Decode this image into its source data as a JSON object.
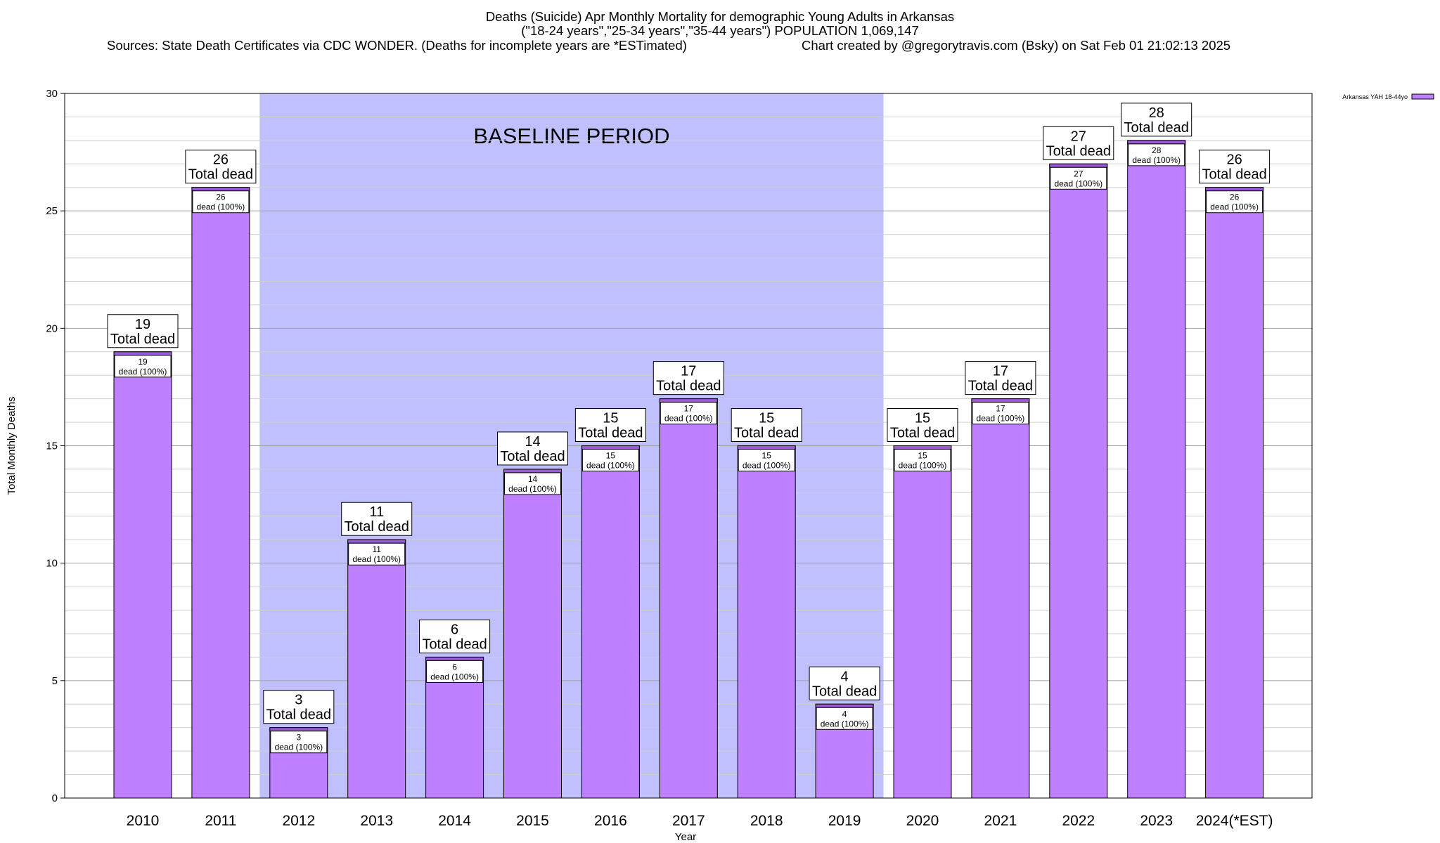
{
  "header": {
    "title_line1": "Deaths (Suicide) Apr Monthly Mortality for demographic Young Adults in Arkansas",
    "title_line2": "(\"18-24 years\",\"25-34 years\",\"35-44 years\") POPULATION 1,069,147",
    "sources": "Sources: State Death Certificates via CDC WONDER. (Deaths for incomplete years are *ESTimated)",
    "credit": "Chart created by @gregorytravis.com (Bsky) on Sat Feb 01 21:02:13 2025"
  },
  "chart_data": {
    "type": "bar",
    "categories": [
      "2010",
      "2011",
      "2012",
      "2013",
      "2014",
      "2015",
      "2016",
      "2017",
      "2018",
      "2019",
      "2020",
      "2021",
      "2022",
      "2023",
      "2024(*EST)"
    ],
    "series": [
      {
        "name": "Arkansas YAH 18-44yo",
        "values": [
          19,
          26,
          3,
          11,
          6,
          14,
          15,
          17,
          15,
          4,
          15,
          17,
          27,
          28,
          26
        ],
        "color": "#bf80ff"
      }
    ],
    "xlabel": "Year",
    "ylabel": "Total Monthly Deaths",
    "ylim": [
      0,
      30
    ],
    "yticks": [
      0,
      5,
      10,
      15,
      20,
      25,
      30
    ],
    "grid": true,
    "legend_position": "top-right",
    "total_label": "Total dead",
    "inner_label": "dead (100%)",
    "baseline": {
      "label": "BASELINE PERIOD",
      "from": "2012",
      "to": "2019",
      "color": "#c0c0ff"
    },
    "bar_top_color": "#9b59d9"
  }
}
